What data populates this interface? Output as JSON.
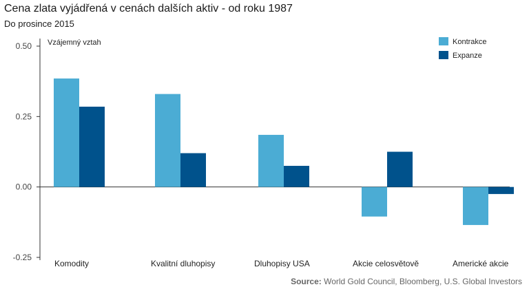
{
  "chart_data": {
    "type": "bar",
    "title": "Cena zlata vyjádřená v cenách dalších aktiv - od roku 1987",
    "subtitle": "Do prosince 2015",
    "ylabel": "Vzájemný vztah",
    "xlabel": "",
    "ylim": [
      -0.25,
      0.5
    ],
    "yticks": [
      "0.50",
      "0.25",
      "0.00",
      "-0.25"
    ],
    "ytick_values": [
      0.5,
      0.25,
      0.0,
      -0.25
    ],
    "categories": [
      "Komodity",
      "Kvalitní dluhopisy",
      "Dluhopisy USA",
      "Akcie celosvětově",
      "Americké akcie"
    ],
    "series": [
      {
        "name": "Kontrakce",
        "color": "#4bacd4",
        "values": [
          0.385,
          0.33,
          0.185,
          -0.105,
          -0.135
        ]
      },
      {
        "name": "Expanze",
        "color": "#00528c",
        "values": [
          0.285,
          0.12,
          0.075,
          0.125,
          -0.025
        ]
      }
    ],
    "legend_position": "top-right",
    "grid": false
  },
  "source": {
    "label": "Source:",
    "text": "World Gold Council, Bloomberg, U.S. Global Investors"
  }
}
